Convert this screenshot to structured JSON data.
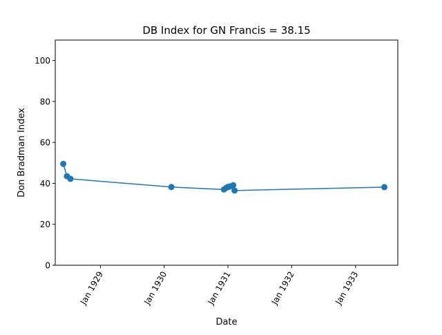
{
  "chart_data": {
    "type": "line",
    "title": "DB Index for GN Francis = 38.15",
    "xlabel": "Date",
    "ylabel": "Don Bradman Index",
    "xlim": [
      "1928-04-17",
      "1933-08-31"
    ],
    "ylim": [
      0,
      110
    ],
    "x_ticks": [
      {
        "date": "1929-01-01",
        "label": "Jan 1929"
      },
      {
        "date": "1930-01-01",
        "label": "Jan 1930"
      },
      {
        "date": "1931-01-01",
        "label": "Jan 1931"
      },
      {
        "date": "1932-01-01",
        "label": "Jan 1932"
      },
      {
        "date": "1933-01-01",
        "label": "Jan 1933"
      }
    ],
    "y_ticks": [
      0,
      20,
      40,
      60,
      80,
      100
    ],
    "grid": false,
    "series": [
      {
        "color": "#1f77b4",
        "points": [
          {
            "x": "1928-06-02",
            "y": 49.5
          },
          {
            "x": "1928-06-23",
            "y": 43.5
          },
          {
            "x": "1928-07-13",
            "y": 42.2
          },
          {
            "x": "1930-02-11",
            "y": 38.2
          },
          {
            "x": "1930-12-09",
            "y": 37.0
          },
          {
            "x": "1930-12-22",
            "y": 37.8
          },
          {
            "x": "1930-12-31",
            "y": 38.2
          },
          {
            "x": "1931-01-12",
            "y": 38.5
          },
          {
            "x": "1931-01-31",
            "y": 39.1
          },
          {
            "x": "1931-02-08",
            "y": 36.5
          },
          {
            "x": "1933-06-15",
            "y": 38.15
          }
        ]
      }
    ]
  }
}
